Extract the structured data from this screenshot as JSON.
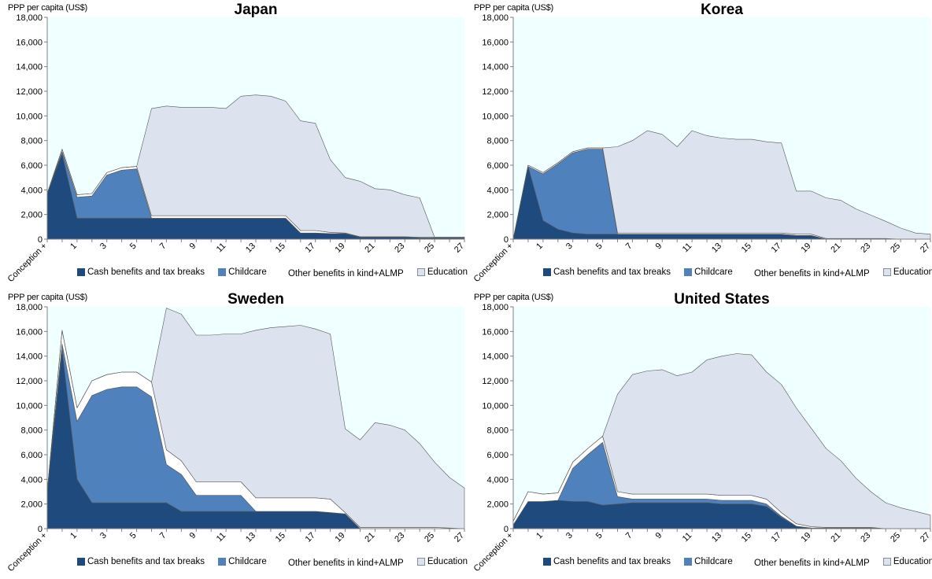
{
  "colors": {
    "cash": "#1f4a7e",
    "childcare": "#4f81bd",
    "other": "#ffffff",
    "education": "#dce3ef",
    "plot_bg": "#f0ffff",
    "outline": "#555555"
  },
  "chart_data": [
    {
      "type": "area",
      "stacked": true,
      "title": "Japan",
      "ylabel": "PPP per capita (US$)",
      "ylim": [
        0,
        18000
      ],
      "yticks": [
        0,
        2000,
        4000,
        6000,
        8000,
        10000,
        12000,
        14000,
        16000,
        18000
      ],
      "ytick_labels": [
        "0",
        "2,000",
        "4,000",
        "6,000",
        "8,000",
        "10,000",
        "12,000",
        "14,000",
        "16,000",
        "18,000"
      ],
      "x_categories": [
        "Conception +",
        "0",
        "1",
        "2",
        "3",
        "4",
        "5",
        "6",
        "7",
        "8",
        "9",
        "10",
        "11",
        "12",
        "13",
        "14",
        "15",
        "16",
        "17",
        "18",
        "19",
        "20",
        "21",
        "22",
        "23",
        "24",
        "25",
        "26",
        "27"
      ],
      "xtick_labels": [
        "Conception +",
        "1",
        "3",
        "5",
        "7",
        "9",
        "11",
        "13",
        "15",
        "17",
        "19",
        "21",
        "23",
        "25",
        "27"
      ],
      "grid": false,
      "legend_position": "bottom",
      "series": [
        {
          "name": "Cash benefits and tax breaks",
          "values": [
            3700,
            6900,
            1700,
            1700,
            1700,
            1700,
            1700,
            1700,
            1700,
            1700,
            1700,
            1700,
            1700,
            1700,
            1700,
            1700,
            1700,
            500,
            500,
            450,
            450,
            150,
            150,
            150,
            150,
            100,
            100,
            100,
            100
          ]
        },
        {
          "name": "Childcare",
          "values": [
            0,
            200,
            1700,
            1800,
            3500,
            3900,
            4000,
            0,
            0,
            0,
            0,
            0,
            0,
            0,
            0,
            0,
            0,
            0,
            0,
            0,
            0,
            0,
            0,
            0,
            0,
            0,
            0,
            0,
            0
          ]
        },
        {
          "name": "Other benefits in kind+ALMP",
          "values": [
            0,
            200,
            200,
            200,
            200,
            200,
            200,
            200,
            200,
            200,
            200,
            200,
            200,
            200,
            200,
            200,
            200,
            200,
            200,
            100,
            50,
            50,
            50,
            50,
            50,
            50,
            50,
            50,
            50
          ]
        },
        {
          "name": "Education",
          "values": [
            0,
            0,
            0,
            0,
            0,
            0,
            0,
            8700,
            8900,
            8800,
            8800,
            8800,
            8700,
            9700,
            9800,
            9700,
            9300,
            8900,
            8700,
            5900,
            4500,
            4500,
            3900,
            3800,
            3400,
            3200,
            0,
            0,
            0
          ]
        }
      ]
    },
    {
      "type": "area",
      "stacked": true,
      "title": "Korea",
      "ylabel": "PPP per capita (US$)",
      "ylim": [
        0,
        18000
      ],
      "yticks": [
        0,
        2000,
        4000,
        6000,
        8000,
        10000,
        12000,
        14000,
        16000,
        18000
      ],
      "ytick_labels": [
        "0",
        "2,000",
        "4,000",
        "6,000",
        "8,000",
        "10,000",
        "12,000",
        "14,000",
        "16,000",
        "18,000"
      ],
      "x_categories": [
        "Conception +",
        "0",
        "1",
        "2",
        "3",
        "4",
        "5",
        "6",
        "7",
        "8",
        "9",
        "10",
        "11",
        "12",
        "13",
        "14",
        "15",
        "16",
        "17",
        "18",
        "19",
        "20",
        "21",
        "22",
        "23",
        "24",
        "25",
        "26",
        "27"
      ],
      "xtick_labels": [
        "Conception +",
        "1",
        "3",
        "5",
        "7",
        "9",
        "11",
        "13",
        "15",
        "17",
        "19",
        "21",
        "23",
        "25",
        "27"
      ],
      "grid": false,
      "legend_position": "bottom",
      "series": [
        {
          "name": "Cash benefits and tax breaks",
          "values": [
            0,
            5900,
            1500,
            800,
            500,
            400,
            400,
            400,
            400,
            400,
            400,
            400,
            400,
            400,
            400,
            400,
            400,
            400,
            400,
            300,
            300,
            0,
            0,
            0,
            0,
            0,
            0,
            0,
            0
          ]
        },
        {
          "name": "Childcare",
          "values": [
            0,
            0,
            3800,
            5300,
            6500,
            6900,
            6900,
            0,
            0,
            0,
            0,
            0,
            0,
            0,
            0,
            0,
            0,
            0,
            0,
            0,
            0,
            0,
            0,
            0,
            0,
            0,
            0,
            0,
            0
          ]
        },
        {
          "name": "Other benefits in kind+ALMP",
          "values": [
            0,
            100,
            100,
            100,
            100,
            100,
            100,
            100,
            100,
            100,
            100,
            100,
            100,
            100,
            100,
            100,
            100,
            100,
            100,
            100,
            100,
            50,
            50,
            50,
            50,
            50,
            0,
            0,
            0
          ]
        },
        {
          "name": "Education",
          "values": [
            0,
            0,
            0,
            0,
            0,
            0,
            0,
            7000,
            7500,
            8300,
            8000,
            7000,
            8300,
            7900,
            7700,
            7600,
            7600,
            7400,
            7300,
            3500,
            3500,
            3300,
            3100,
            2400,
            1900,
            1400,
            900,
            500,
            400
          ]
        }
      ]
    },
    {
      "type": "area",
      "stacked": true,
      "title": "Sweden",
      "ylabel": "PPP per capita (US$)",
      "ylim": [
        0,
        18000
      ],
      "yticks": [
        0,
        2000,
        4000,
        6000,
        8000,
        10000,
        12000,
        14000,
        16000,
        18000
      ],
      "ytick_labels": [
        "0",
        "2,000",
        "4,000",
        "6,000",
        "8,000",
        "10,000",
        "12,000",
        "14,000",
        "16,000",
        "18,000"
      ],
      "x_categories": [
        "Conception +",
        "0",
        "1",
        "2",
        "3",
        "4",
        "5",
        "6",
        "7",
        "8",
        "9",
        "10",
        "11",
        "12",
        "13",
        "14",
        "15",
        "16",
        "17",
        "18",
        "19",
        "20",
        "21",
        "22",
        "23",
        "24",
        "25",
        "26",
        "27"
      ],
      "xtick_labels": [
        "Conception +",
        "1",
        "3",
        "5",
        "7",
        "9",
        "11",
        "13",
        "15",
        "17",
        "19",
        "21",
        "23",
        "25",
        "27"
      ],
      "grid": false,
      "legend_position": "bottom",
      "series": [
        {
          "name": "Cash benefits and tax breaks",
          "values": [
            3000,
            14500,
            4000,
            2100,
            2100,
            2100,
            2100,
            2100,
            2100,
            1400,
            1400,
            1400,
            1400,
            1400,
            1400,
            1400,
            1400,
            1400,
            1400,
            1300,
            1200,
            0,
            0,
            0,
            0,
            0,
            0,
            0,
            0
          ]
        },
        {
          "name": "Childcare",
          "values": [
            0,
            500,
            4700,
            8700,
            9200,
            9400,
            9400,
            8600,
            3100,
            3000,
            1300,
            1300,
            1300,
            1300,
            0,
            0,
            0,
            0,
            0,
            0,
            0,
            0,
            0,
            0,
            0,
            0,
            0,
            0,
            0
          ]
        },
        {
          "name": "Other benefits in kind+ALMP",
          "values": [
            0,
            1100,
            1100,
            1200,
            1200,
            1200,
            1200,
            1200,
            1200,
            1100,
            1100,
            1100,
            1100,
            1100,
            1100,
            1100,
            1100,
            1100,
            1100,
            1100,
            100,
            100,
            100,
            100,
            100,
            100,
            100,
            50,
            0
          ]
        },
        {
          "name": "Education",
          "values": [
            0,
            0,
            0,
            0,
            0,
            0,
            0,
            0,
            11500,
            11900,
            11900,
            11900,
            12000,
            12000,
            13600,
            13800,
            13900,
            14000,
            13700,
            13400,
            6800,
            7100,
            8500,
            8300,
            7900,
            6800,
            5300,
            4100,
            3300
          ]
        }
      ]
    },
    {
      "type": "area",
      "stacked": true,
      "title": "United States",
      "ylabel": "PPP per capita (US$)",
      "ylim": [
        0,
        18000
      ],
      "yticks": [
        0,
        2000,
        4000,
        6000,
        8000,
        10000,
        12000,
        14000,
        16000,
        18000
      ],
      "ytick_labels": [
        "0",
        "2,000",
        "4,000",
        "6,000",
        "8,000",
        "10,000",
        "12,000",
        "14,000",
        "16,000",
        "18,000"
      ],
      "x_categories": [
        "Conception +",
        "0",
        "1",
        "2",
        "3",
        "4",
        "5",
        "6",
        "7",
        "8",
        "9",
        "10",
        "11",
        "12",
        "13",
        "14",
        "15",
        "16",
        "17",
        "18",
        "19",
        "20",
        "21",
        "22",
        "23",
        "24",
        "25",
        "26",
        "27"
      ],
      "xtick_labels": [
        "Conception +",
        "1",
        "3",
        "5",
        "7",
        "9",
        "11",
        "13",
        "15",
        "17",
        "19",
        "21",
        "23",
        "25",
        "27"
      ],
      "grid": false,
      "legend_position": "bottom",
      "series": [
        {
          "name": "Cash benefits and tax breaks",
          "values": [
            300,
            2200,
            2200,
            2300,
            2200,
            2200,
            1900,
            2000,
            2100,
            2100,
            2100,
            2100,
            2100,
            2100,
            2000,
            2000,
            2000,
            1800,
            900,
            200,
            50,
            50,
            50,
            50,
            50,
            0,
            0,
            0,
            0
          ]
        },
        {
          "name": "Childcare",
          "values": [
            0,
            0,
            0,
            0,
            2700,
            3800,
            5100,
            600,
            300,
            300,
            300,
            300,
            300,
            300,
            300,
            300,
            300,
            200,
            100,
            0,
            0,
            0,
            0,
            0,
            0,
            0,
            0,
            0,
            0
          ]
        },
        {
          "name": "Other benefits in kind+ALMP",
          "values": [
            300,
            800,
            600,
            600,
            500,
            500,
            500,
            400,
            400,
            400,
            400,
            400,
            400,
            400,
            400,
            400,
            400,
            400,
            300,
            200,
            100,
            50,
            50,
            50,
            50,
            0,
            0,
            0,
            0
          ]
        },
        {
          "name": "Education",
          "values": [
            0,
            0,
            0,
            0,
            0,
            0,
            0,
            7900,
            9700,
            10000,
            10100,
            9600,
            9900,
            10900,
            11300,
            11500,
            11400,
            10300,
            10400,
            9400,
            8000,
            6400,
            5400,
            4000,
            2900,
            2100,
            1700,
            1400,
            1100
          ]
        }
      ]
    }
  ]
}
